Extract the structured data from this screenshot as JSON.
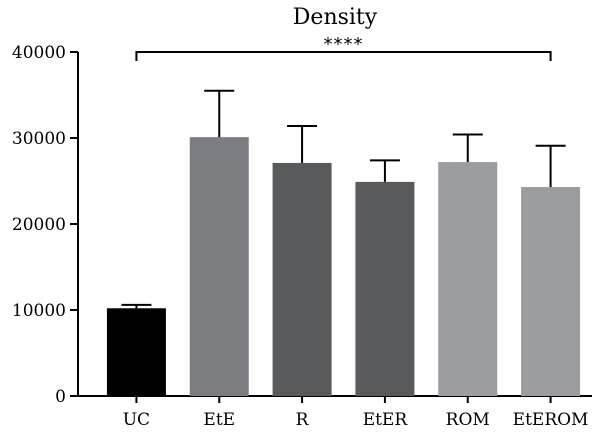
{
  "chart_data": {
    "type": "bar",
    "title": "Density",
    "categories": [
      "UC",
      "EtE",
      "R",
      "EtER",
      "ROM",
      "EtEROM"
    ],
    "values": [
      10200,
      30100,
      27100,
      24900,
      27200,
      24300
    ],
    "errors": [
      400,
      5400,
      4300,
      2500,
      3200,
      4800
    ],
    "colors": [
      "#000000",
      "#7b7d80",
      "#585a5c",
      "#585a5c",
      "#9a9c9f",
      "#9a9c9f"
    ],
    "ylim": [
      0,
      40000
    ],
    "yticks": [
      0,
      10000,
      20000,
      30000,
      40000
    ],
    "ytick_labels": [
      "0",
      "10000",
      "20000",
      "30000",
      "40000"
    ],
    "xlabel": "",
    "ylabel": "",
    "grid": false,
    "significance": {
      "label": "****",
      "from": "UC",
      "to": "EtEROM",
      "y": 40000
    }
  }
}
